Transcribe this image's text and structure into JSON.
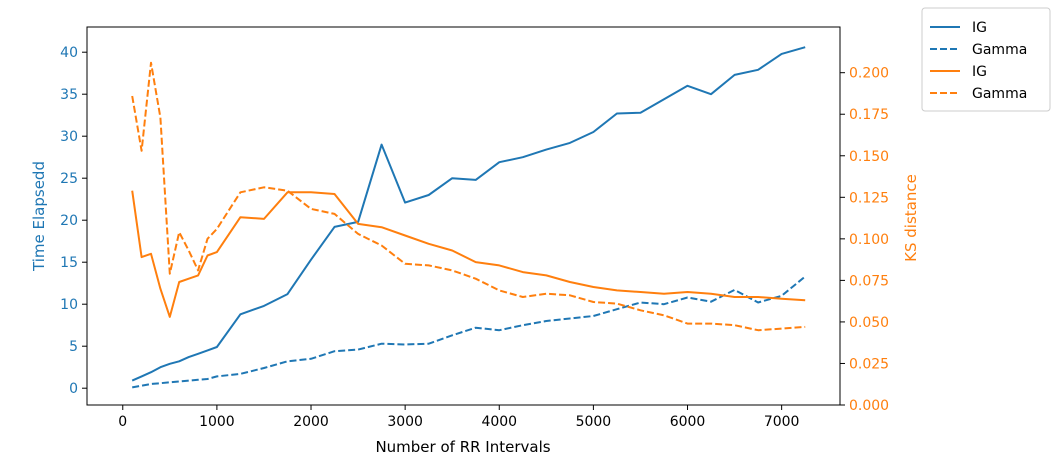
{
  "chart_data": {
    "type": "line",
    "xlabel": "Number of RR Intervals",
    "ylabel_left": "Time Elapsedd",
    "ylabel_right": "KS distance",
    "xlim": [
      -380,
      7620
    ],
    "ylim_left": [
      -2,
      43
    ],
    "ylim_right": [
      0.0,
      0.2275
    ],
    "x_ticks": [
      0,
      1000,
      2000,
      3000,
      4000,
      5000,
      6000,
      7000
    ],
    "y_left_ticks": [
      0,
      5,
      10,
      15,
      20,
      25,
      30,
      35,
      40
    ],
    "y_right_ticks": [
      "0.000",
      "0.025",
      "0.050",
      "0.075",
      "0.100",
      "0.125",
      "0.150",
      "0.175",
      "0.200"
    ],
    "grid": false,
    "legend_position": "outside-top-right",
    "colors": {
      "blue": "#1f77b4",
      "orange": "#ff7f0e"
    },
    "series": [
      {
        "name": "IG",
        "axis": "left",
        "color": "#1f77b4",
        "style": "solid",
        "points": [
          [
            100,
            0.9
          ],
          [
            200,
            1.4
          ],
          [
            300,
            1.9
          ],
          [
            400,
            2.5
          ],
          [
            500,
            2.9
          ],
          [
            600,
            3.2
          ],
          [
            700,
            3.7
          ],
          [
            800,
            4.1
          ],
          [
            900,
            4.5
          ],
          [
            1000,
            4.9
          ],
          [
            1250,
            8.8
          ],
          [
            1500,
            9.8
          ],
          [
            1750,
            11.2
          ],
          [
            2000,
            15.3
          ],
          [
            2250,
            19.2
          ],
          [
            2500,
            19.8
          ],
          [
            2750,
            29.0
          ],
          [
            3000,
            22.1
          ],
          [
            3250,
            23.0
          ],
          [
            3500,
            25.0
          ],
          [
            3750,
            24.8
          ],
          [
            4000,
            26.9
          ],
          [
            4250,
            27.5
          ],
          [
            4500,
            28.4
          ],
          [
            4750,
            29.2
          ],
          [
            5000,
            30.5
          ],
          [
            5250,
            32.7
          ],
          [
            5500,
            32.8
          ],
          [
            5750,
            34.4
          ],
          [
            6000,
            36.0
          ],
          [
            6250,
            35.0
          ],
          [
            6500,
            37.3
          ],
          [
            6750,
            37.9
          ],
          [
            7000,
            39.8
          ],
          [
            7250,
            40.6
          ]
        ]
      },
      {
        "name": "Gamma",
        "axis": "left",
        "color": "#1f77b4",
        "style": "dashed",
        "points": [
          [
            100,
            0.1
          ],
          [
            200,
            0.3
          ],
          [
            300,
            0.5
          ],
          [
            400,
            0.6
          ],
          [
            500,
            0.7
          ],
          [
            600,
            0.8
          ],
          [
            700,
            0.9
          ],
          [
            800,
            1.0
          ],
          [
            900,
            1.1
          ],
          [
            1000,
            1.4
          ],
          [
            1250,
            1.7
          ],
          [
            1500,
            2.4
          ],
          [
            1750,
            3.2
          ],
          [
            2000,
            3.5
          ],
          [
            2250,
            4.4
          ],
          [
            2500,
            4.6
          ],
          [
            2750,
            5.3
          ],
          [
            3000,
            5.2
          ],
          [
            3250,
            5.3
          ],
          [
            3500,
            6.3
          ],
          [
            3750,
            7.2
          ],
          [
            4000,
            6.9
          ],
          [
            4250,
            7.5
          ],
          [
            4500,
            8.0
          ],
          [
            4750,
            8.3
          ],
          [
            5000,
            8.6
          ],
          [
            5250,
            9.4
          ],
          [
            5500,
            10.2
          ],
          [
            5750,
            10.0
          ],
          [
            6000,
            10.8
          ],
          [
            6250,
            10.3
          ],
          [
            6500,
            11.7
          ],
          [
            6750,
            10.2
          ],
          [
            7000,
            11.0
          ],
          [
            7250,
            13.3
          ]
        ]
      },
      {
        "name": "IG",
        "axis": "right",
        "color": "#ff7f0e",
        "style": "solid",
        "points": [
          [
            100,
            0.129
          ],
          [
            200,
            0.089
          ],
          [
            300,
            0.091
          ],
          [
            400,
            0.07
          ],
          [
            500,
            0.053
          ],
          [
            600,
            0.074
          ],
          [
            700,
            0.076
          ],
          [
            800,
            0.078
          ],
          [
            900,
            0.09
          ],
          [
            1000,
            0.092
          ],
          [
            1250,
            0.113
          ],
          [
            1500,
            0.112
          ],
          [
            1750,
            0.128
          ],
          [
            2000,
            0.128
          ],
          [
            2250,
            0.127
          ],
          [
            2500,
            0.109
          ],
          [
            2750,
            0.107
          ],
          [
            3000,
            0.102
          ],
          [
            3250,
            0.097
          ],
          [
            3500,
            0.093
          ],
          [
            3750,
            0.086
          ],
          [
            4000,
            0.084
          ],
          [
            4250,
            0.08
          ],
          [
            4500,
            0.078
          ],
          [
            4750,
            0.074
          ],
          [
            5000,
            0.071
          ],
          [
            5250,
            0.069
          ],
          [
            5500,
            0.068
          ],
          [
            5750,
            0.067
          ],
          [
            6000,
            0.068
          ],
          [
            6250,
            0.067
          ],
          [
            6500,
            0.065
          ],
          [
            6750,
            0.065
          ],
          [
            7000,
            0.064
          ],
          [
            7250,
            0.063
          ]
        ]
      },
      {
        "name": "Gamma",
        "axis": "right",
        "color": "#ff7f0e",
        "style": "dashed",
        "points": [
          [
            100,
            0.186
          ],
          [
            200,
            0.153
          ],
          [
            300,
            0.206
          ],
          [
            400,
            0.173
          ],
          [
            500,
            0.079
          ],
          [
            600,
            0.104
          ],
          [
            700,
            0.093
          ],
          [
            800,
            0.081
          ],
          [
            900,
            0.1
          ],
          [
            1000,
            0.106
          ],
          [
            1250,
            0.128
          ],
          [
            1500,
            0.131
          ],
          [
            1750,
            0.129
          ],
          [
            2000,
            0.118
          ],
          [
            2250,
            0.115
          ],
          [
            2500,
            0.103
          ],
          [
            2750,
            0.096
          ],
          [
            3000,
            0.085
          ],
          [
            3250,
            0.084
          ],
          [
            3500,
            0.081
          ],
          [
            3750,
            0.076
          ],
          [
            4000,
            0.069
          ],
          [
            4250,
            0.065
          ],
          [
            4500,
            0.067
          ],
          [
            4750,
            0.066
          ],
          [
            5000,
            0.062
          ],
          [
            5250,
            0.061
          ],
          [
            5500,
            0.057
          ],
          [
            5750,
            0.054
          ],
          [
            6000,
            0.049
          ],
          [
            6250,
            0.049
          ],
          [
            6500,
            0.048
          ],
          [
            6750,
            0.045
          ],
          [
            7000,
            0.046
          ],
          [
            7250,
            0.047
          ]
        ]
      }
    ]
  }
}
